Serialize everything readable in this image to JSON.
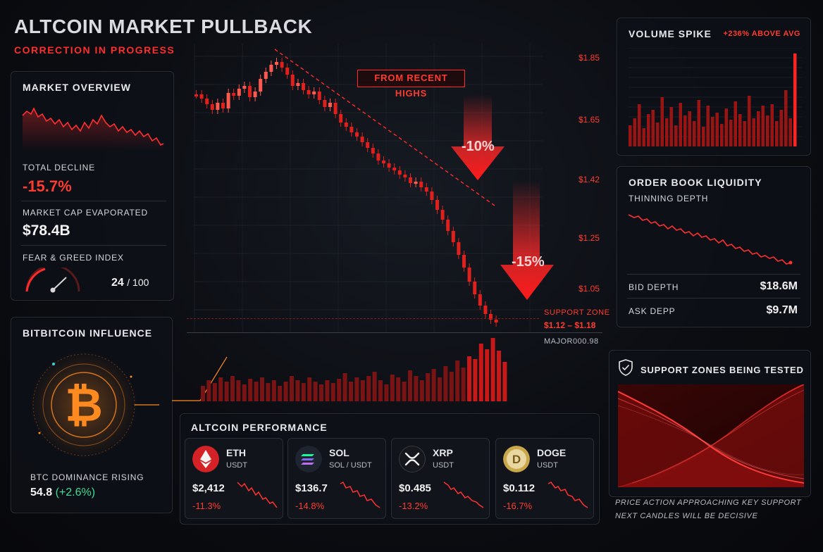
{
  "header": {
    "title": "ALTCOIN MARKET PULLBACK",
    "subtitle": "CORRECTION IN PROGRESS"
  },
  "overview": {
    "title": "MARKET OVERVIEW",
    "total_decline_label": "TOTAL DECLINE",
    "total_decline_value": "-15.7%",
    "market_cap_label": "MARKET CAP EVAPORATED",
    "market_cap_value": "$78.4B",
    "fear_greed_label": "FEAR & GREED INDEX",
    "fear_greed_value": "24",
    "fear_greed_max": "/ 100"
  },
  "btc": {
    "title": "BITBITCOIN INFLUENCE",
    "dominance_label": "BTC DOMINANCE RISING",
    "dominance_value": "54.8",
    "dominance_change": "(+2.6%)"
  },
  "main_chart": {
    "price_labels": [
      "$1.85",
      "$1.65",
      "$1.42",
      "$1.25",
      "$1.05"
    ],
    "callout": "FROM RECENT HIGHS",
    "arrow1": "-10%",
    "arrow2": "-15%",
    "support_label": "SUPPORT ZONE",
    "support_range": "$1.12 – $1.18",
    "major_label": "MAJOR000.98"
  },
  "volume_spike": {
    "title": "VOLUME SPIKE",
    "badge": "+236% ABOVE AVG"
  },
  "order_book": {
    "title": "ORDER BOOK LIQUIDITY",
    "subtitle": "THINNING DEPTH",
    "bid_label": "BID DEPTH",
    "bid_value": "$18.6M",
    "ask_label": "ASK DEPP",
    "ask_value": "$9.7M"
  },
  "support_zones": {
    "title": "SUPPORT ZONES BEING TESTED",
    "note1": "PRICE ACTION APPROACHING KEY SUPPORT",
    "note2": "NEXT CANDLES WILL BE DECISIVE"
  },
  "performance": {
    "title": "ALTCOIN PERFORMANCE",
    "coins": [
      {
        "symbol": "ETH",
        "pair": "USDT",
        "price": "$2,412",
        "change": "-11.3%",
        "icon": "ethereum-icon",
        "color": "#e0282c"
      },
      {
        "symbol": "SOL",
        "pair": "SOL / USDT",
        "price": "$136.7",
        "change": "-14.8%",
        "icon": "solana-icon",
        "color": "#1e2430"
      },
      {
        "symbol": "XRP",
        "pair": "USDT",
        "price": "$0.485",
        "change": "-13.2%",
        "icon": "xrp-icon",
        "color": "#1a1c22"
      },
      {
        "symbol": "DOGE",
        "pair": "USDT",
        "price": "$0.112",
        "change": "-16.7%",
        "icon": "dogecoin-icon",
        "color": "#c9a84a"
      }
    ]
  },
  "colors": {
    "accent_red": "#ff3b30",
    "btc_orange": "#ff8a1f",
    "positive": "#3ddc97"
  }
}
